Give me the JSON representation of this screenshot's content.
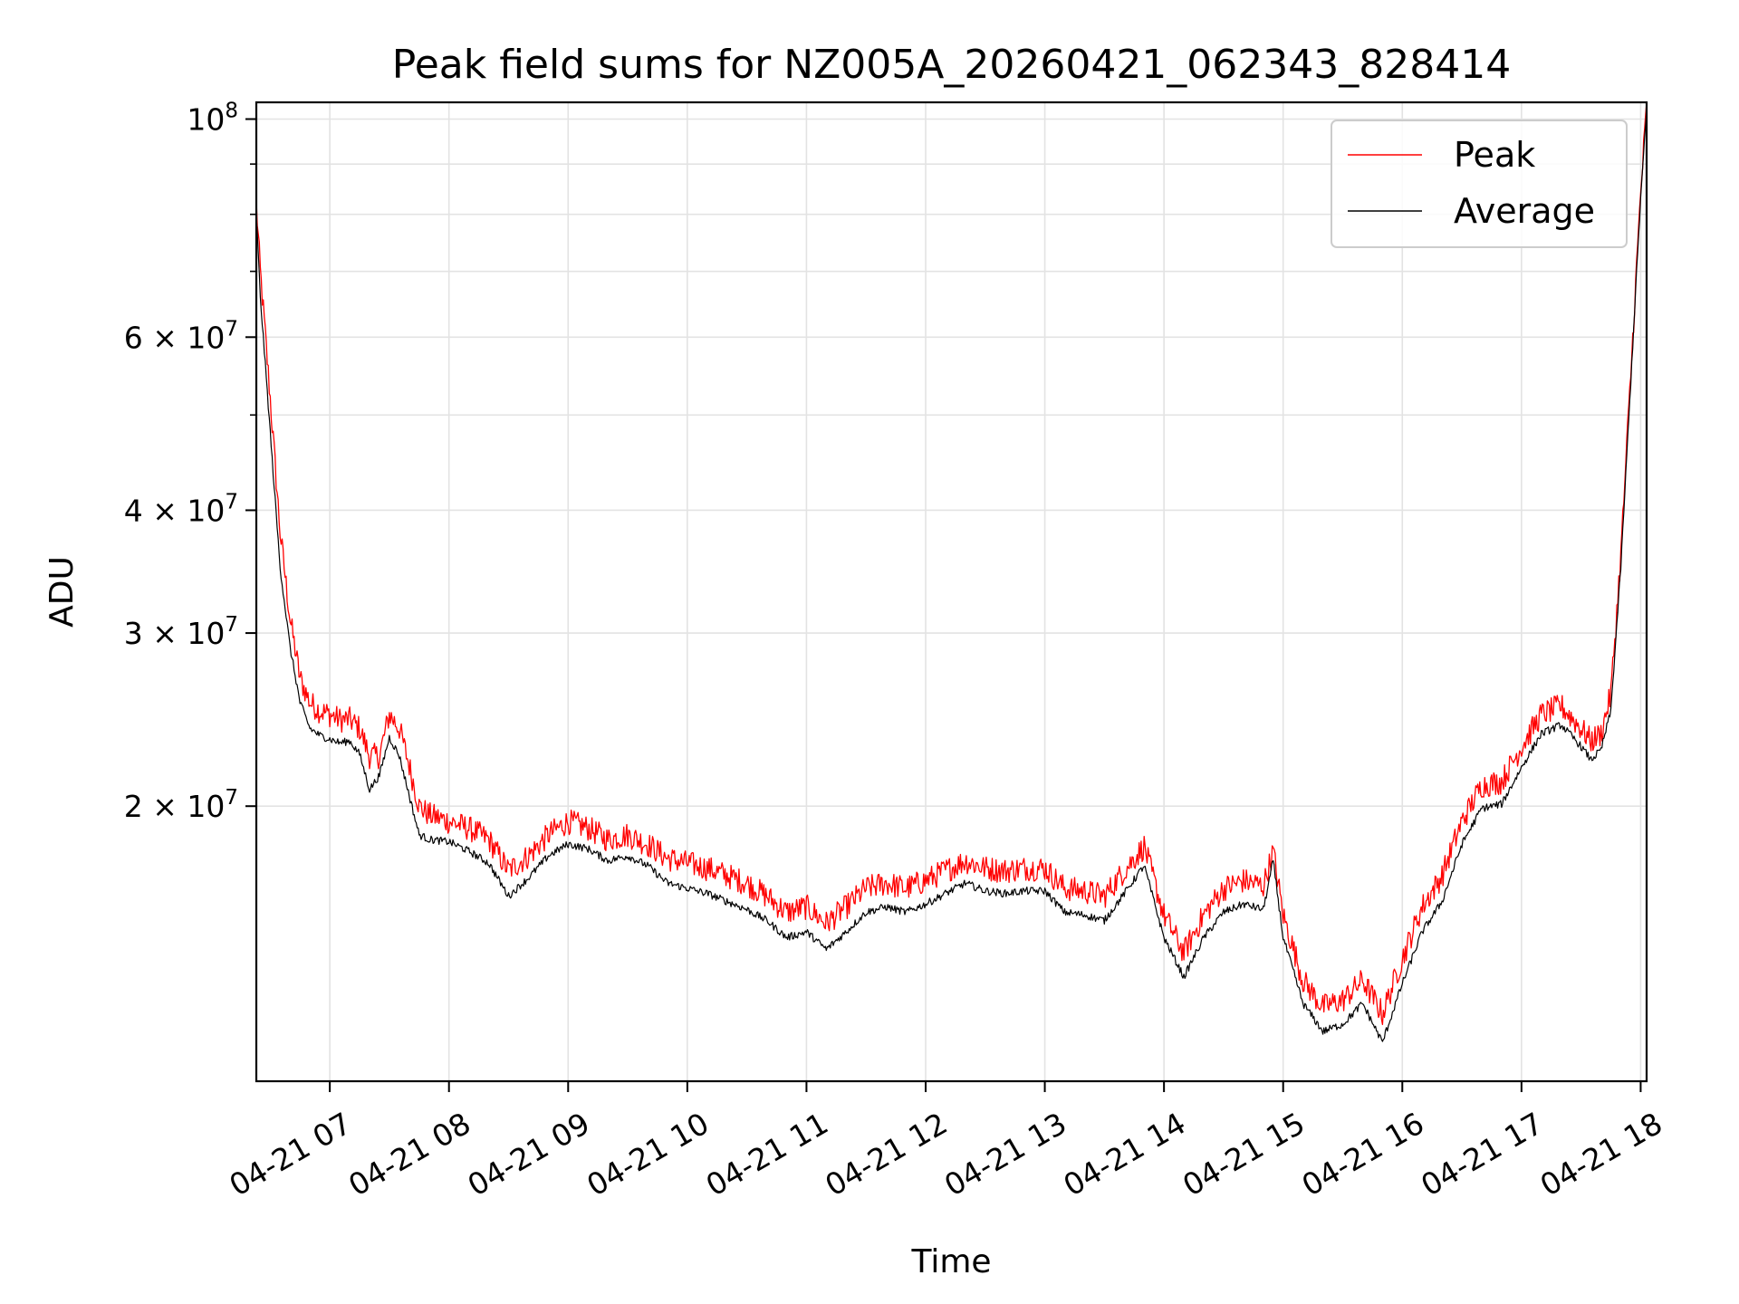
{
  "chart_data": {
    "type": "line",
    "title": "Peak field sums for NZ005A_20260421_062343_828414",
    "xlabel": "Time",
    "ylabel": "ADU",
    "y_scale": "log",
    "ylim": [
      10500000,
      104000000
    ],
    "xlim": [
      "04-21 06:23",
      "04-21 18:03"
    ],
    "grid": true,
    "legend_position": "top-right",
    "x_ticks": [
      "04-21 07",
      "04-21 08",
      "04-21 09",
      "04-21 10",
      "04-21 11",
      "04-21 12",
      "04-21 13",
      "04-21 14",
      "04-21 15",
      "04-21 16",
      "04-21 17",
      "04-21 18"
    ],
    "y_ticks": [
      {
        "value": 100000000,
        "base": "10",
        "exp": "8"
      },
      {
        "value": 60000000,
        "base": "6 × 10",
        "exp": "7"
      },
      {
        "value": 40000000,
        "base": "4 × 10",
        "exp": "7"
      },
      {
        "value": 30000000,
        "base": "3 × 10",
        "exp": "7"
      },
      {
        "value": 20000000,
        "base": "2 × 10",
        "exp": "7"
      }
    ],
    "x": [
      "06:23",
      "06:25",
      "06:30",
      "06:35",
      "06:40",
      "06:45",
      "06:50",
      "06:55",
      "07:00",
      "07:05",
      "07:10",
      "07:15",
      "07:20",
      "07:25",
      "07:30",
      "07:35",
      "07:40",
      "07:45",
      "07:50",
      "08:00",
      "08:10",
      "08:20",
      "08:30",
      "08:40",
      "08:50",
      "09:00",
      "09:10",
      "09:20",
      "09:30",
      "09:40",
      "09:50",
      "10:00",
      "10:10",
      "10:20",
      "10:30",
      "10:40",
      "10:50",
      "11:00",
      "11:10",
      "11:20",
      "11:30",
      "11:40",
      "11:50",
      "12:00",
      "12:10",
      "12:20",
      "12:30",
      "12:40",
      "12:50",
      "13:00",
      "13:10",
      "13:20",
      "13:30",
      "13:40",
      "13:50",
      "14:00",
      "14:10",
      "14:20",
      "14:30",
      "14:40",
      "14:50",
      "14:55",
      "15:00",
      "15:10",
      "15:20",
      "15:30",
      "15:40",
      "15:50",
      "16:00",
      "16:10",
      "16:20",
      "16:30",
      "16:40",
      "16:50",
      "17:00",
      "17:10",
      "17:20",
      "17:30",
      "17:35",
      "17:40",
      "17:45",
      "17:50",
      "17:55",
      "18:00",
      "18:03"
    ],
    "series": [
      {
        "name": "Peak",
        "color": "#ff0000",
        "values": [
          82000000,
          70000000,
          52000000,
          38000000,
          31000000,
          27000000,
          25500000,
          25000000,
          24800000,
          24500000,
          24500000,
          24000000,
          22500000,
          22500000,
          24800000,
          24000000,
          22000000,
          20000000,
          19600000,
          19300000,
          19000000,
          18500000,
          17200000,
          17800000,
          18700000,
          19300000,
          19000000,
          18500000,
          18700000,
          18300000,
          17700000,
          17500000,
          17300000,
          17000000,
          16700000,
          16200000,
          15600000,
          15800000,
          15200000,
          15800000,
          16500000,
          16700000,
          16500000,
          16800000,
          17200000,
          17600000,
          17300000,
          17200000,
          17300000,
          17300000,
          16500000,
          16400000,
          16200000,
          17200000,
          18200000,
          15500000,
          14200000,
          15500000,
          16500000,
          16800000,
          16600000,
          18000000,
          15500000,
          13300000,
          12500000,
          12700000,
          13300000,
          12300000,
          14000000,
          15800000,
          17000000,
          19300000,
          21000000,
          21200000,
          23000000,
          24800000,
          25300000,
          24000000,
          23300000,
          23700000,
          26000000,
          36000000,
          55000000,
          84000000,
          103000000
        ]
      },
      {
        "name": "Average",
        "color": "#000000",
        "values": [
          80000000,
          66000000,
          48000000,
          35000000,
          29000000,
          25500000,
          24000000,
          23600000,
          23400000,
          23200000,
          23300000,
          22600000,
          20800000,
          21500000,
          23500000,
          22500000,
          20500000,
          18700000,
          18500000,
          18400000,
          18000000,
          17500000,
          16200000,
          16900000,
          17800000,
          18300000,
          18100000,
          17600000,
          17800000,
          17400000,
          16700000,
          16500000,
          16300000,
          16000000,
          15700000,
          15300000,
          14700000,
          14900000,
          14300000,
          14900000,
          15600000,
          15800000,
          15600000,
          15900000,
          16300000,
          16700000,
          16400000,
          16300000,
          16400000,
          16400000,
          15600000,
          15500000,
          15300000,
          16300000,
          17400000,
          14700000,
          13400000,
          14700000,
          15600000,
          15900000,
          15700000,
          17600000,
          14700000,
          12600000,
          11800000,
          12000000,
          12600000,
          11500000,
          13200000,
          14900000,
          16000000,
          18300000,
          19900000,
          20100000,
          21900000,
          23700000,
          24200000,
          23000000,
          22300000,
          22800000,
          25000000,
          35000000,
          54000000,
          83000000,
          102000000
        ]
      }
    ]
  }
}
